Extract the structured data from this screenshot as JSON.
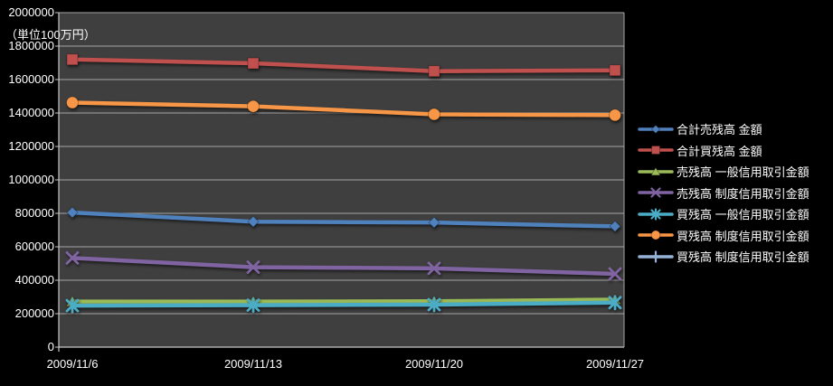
{
  "chart": {
    "unit_label": "（単位100万円）",
    "background": "#000000",
    "plot_background": "#3F3F3F",
    "gridline_color": "#A6A6A6",
    "axis_color": "#C8C8C8",
    "text_color": "#FFFFFF"
  },
  "chart_data": {
    "type": "line",
    "title": "",
    "xlabel": "",
    "ylabel": "（単位100万円）",
    "categories": [
      "2009/11/6",
      "2009/11/13",
      "2009/11/20",
      "2009/11/27"
    ],
    "ylim": [
      0,
      2000000
    ],
    "yticks": [
      0,
      200000,
      400000,
      600000,
      800000,
      1000000,
      1200000,
      1400000,
      1600000,
      1800000,
      2000000
    ],
    "grid": "horizontal",
    "legend_position": "right",
    "series": [
      {
        "name": "合計売残高 金額",
        "marker": "diamond",
        "color": "#4F81BD",
        "values": [
          805000,
          750000,
          745000,
          722000
        ]
      },
      {
        "name": "合計買残高 金額",
        "marker": "square",
        "color": "#C0504D",
        "values": [
          1720000,
          1697000,
          1650000,
          1655000
        ]
      },
      {
        "name": "売残高 一般信用取引金額",
        "marker": "triangle",
        "color": "#9BBB59",
        "values": [
          272000,
          272000,
          274000,
          284000
        ]
      },
      {
        "name": "売残高 制度信用取引金額",
        "marker": "x",
        "color": "#8064A2",
        "values": [
          533000,
          478000,
          471000,
          438000
        ]
      },
      {
        "name": "買残高 一般信用取引金額",
        "marker": "star",
        "color": "#4BACC6",
        "values": [
          248000,
          251000,
          254000,
          266000
        ]
      },
      {
        "name": "買残高 制度信用取引金額",
        "marker": "circle",
        "color": "#F79646",
        "values": [
          1462000,
          1440000,
          1392000,
          1387000
        ]
      },
      {
        "name": "買残高 制度信用取引金額",
        "marker": "plus",
        "color": "#95B3D7",
        "values": []
      }
    ]
  }
}
